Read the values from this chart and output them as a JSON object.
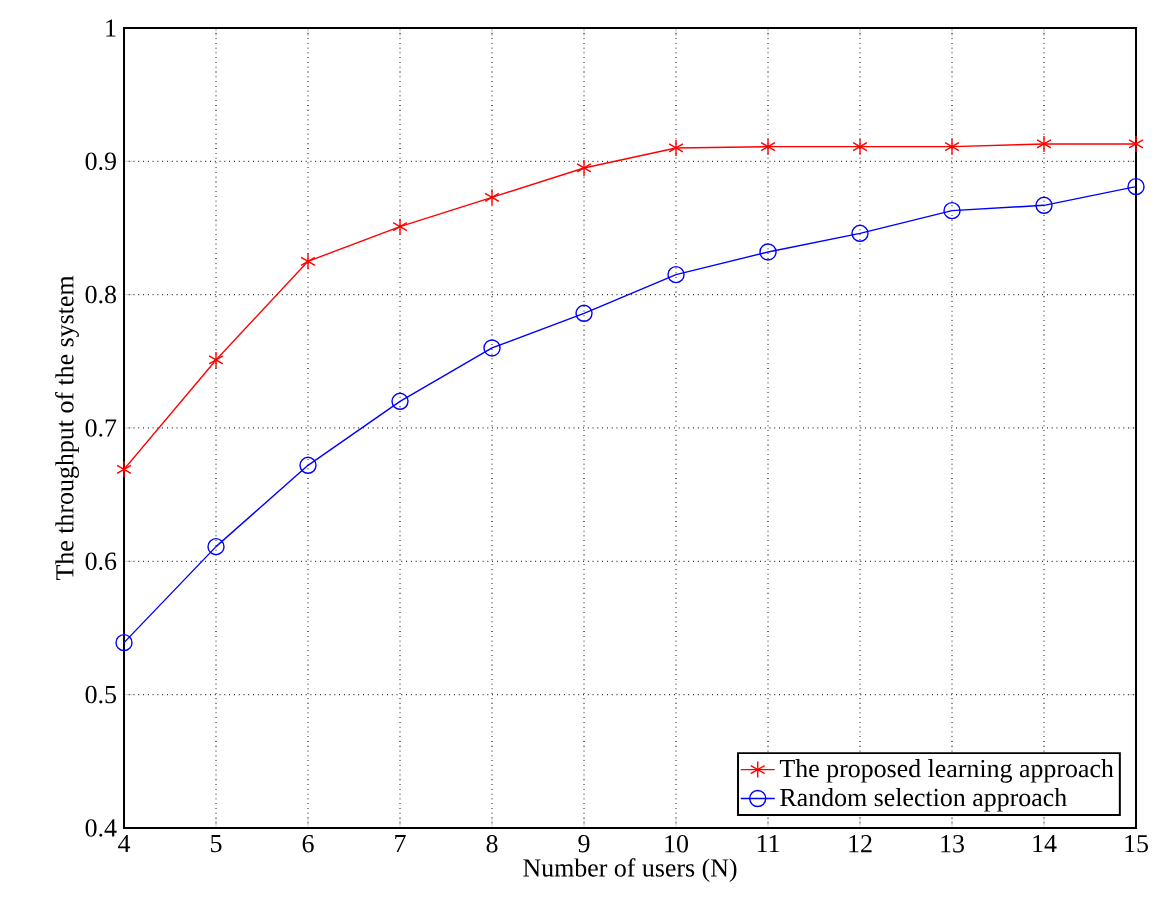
{
  "chart_data": {
    "type": "line",
    "xlabel": "Number of users (N)",
    "ylabel": "The throughput of the system",
    "x": [
      4,
      5,
      6,
      7,
      8,
      9,
      10,
      11,
      12,
      13,
      14,
      15
    ],
    "series": [
      {
        "name": "The proposed learning approach",
        "color": "#ff0000",
        "marker": "cross",
        "values": [
          0.669,
          0.751,
          0.825,
          0.851,
          0.873,
          0.895,
          0.91,
          0.911,
          0.911,
          0.911,
          0.913,
          0.913
        ]
      },
      {
        "name": "Random selection approach",
        "color": "#0000ff",
        "marker": "circle",
        "values": [
          0.539,
          0.611,
          0.672,
          0.72,
          0.76,
          0.786,
          0.815,
          0.832,
          0.846,
          0.863,
          0.867,
          0.881
        ]
      }
    ],
    "xlim": [
      4,
      15
    ],
    "xticks": [
      4,
      5,
      6,
      7,
      8,
      9,
      10,
      11,
      12,
      13,
      14,
      15
    ],
    "ylim": [
      0.4,
      1
    ],
    "yticks": [
      0.4,
      0.5,
      0.6,
      0.7,
      0.8,
      0.9,
      1
    ],
    "grid": true,
    "legend": "bottom right",
    "line_style": "solid"
  }
}
